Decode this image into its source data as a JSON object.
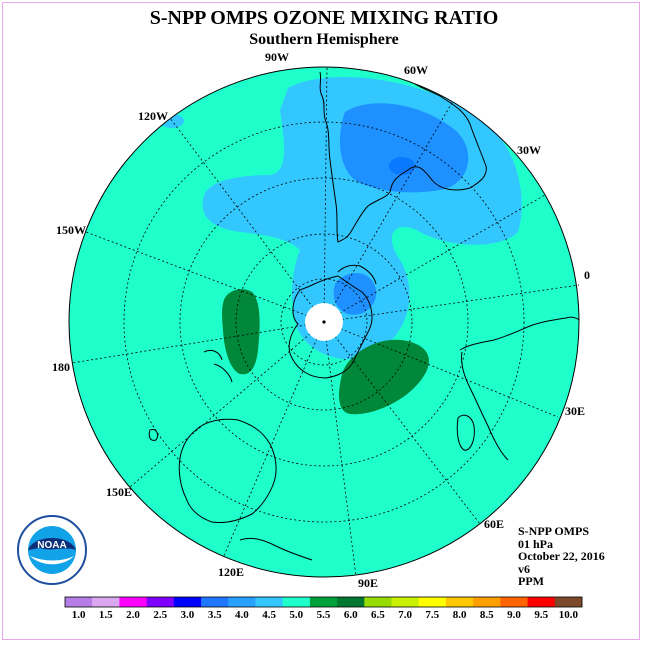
{
  "header": {
    "title": "S-NPP OMPS OZONE MIXING RATIO",
    "subtitle": "Southern Hemisphere"
  },
  "map": {
    "projection": "polar stereographic",
    "hemisphere": "south",
    "longitude_labels": [
      "90W",
      "60W",
      "30W",
      "0",
      "30E",
      "60E",
      "90E",
      "120E",
      "150E",
      "180",
      "150W",
      "120W"
    ]
  },
  "info": {
    "instrument": "S-NPP OMPS",
    "level": "01 hPa",
    "date": "October 22, 2016",
    "version": "v6",
    "units": "PPM"
  },
  "colorbar": {
    "ticks": [
      "1.0",
      "1.5",
      "2.0",
      "2.5",
      "3.0",
      "3.5",
      "4.0",
      "4.5",
      "5.0",
      "5.5",
      "6.0",
      "6.5",
      "7.0",
      "7.5",
      "8.0",
      "8.5",
      "9.0",
      "9.5",
      "10.0"
    ],
    "colors": [
      "#b57de6",
      "#d9a8ee",
      "#ff00ff",
      "#7f00ff",
      "#0000ff",
      "#1e78ff",
      "#28a0ff",
      "#32c8ff",
      "#1effcc",
      "#00a03c",
      "#007830",
      "#96dc00",
      "#c8f000",
      "#ffff00",
      "#ffc800",
      "#ffa000",
      "#ff6400",
      "#ff0000",
      "#7c4a2a"
    ]
  },
  "logo": {
    "text": "NOAA"
  }
}
